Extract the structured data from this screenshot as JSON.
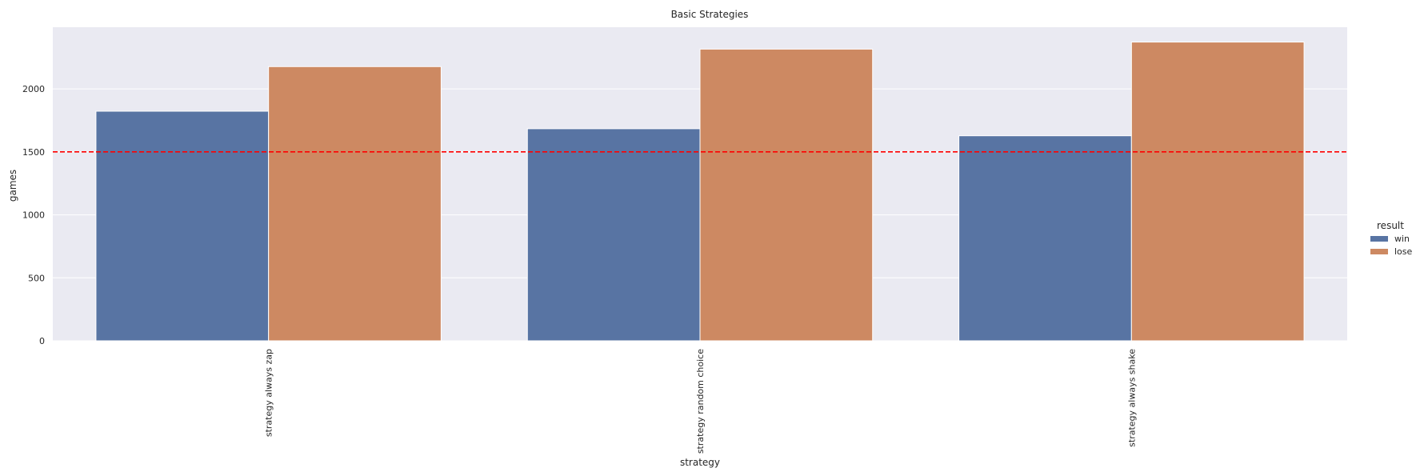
{
  "chart_data": {
    "type": "bar",
    "title": "Basic Strategies",
    "xlabel": "strategy",
    "ylabel": "games",
    "categories": [
      "strategy always zap",
      "strategy random choice",
      "strategy always shake"
    ],
    "series": [
      {
        "name": "win",
        "values": [
          1823,
          1684,
          1628
        ],
        "color": "#5874a3"
      },
      {
        "name": "lose",
        "values": [
          2177,
          2316,
          2372
        ],
        "color": "#cd8962"
      }
    ],
    "ylim": [
      0,
      2490
    ],
    "yticks": [
      0,
      500,
      1000,
      1500,
      2000
    ],
    "grid": true,
    "background_color": "#eaeaf2",
    "reference_line": {
      "value": 1500,
      "color": "#ff0000",
      "style": "dashed"
    },
    "legend": {
      "title": "result",
      "placement": "right"
    }
  }
}
